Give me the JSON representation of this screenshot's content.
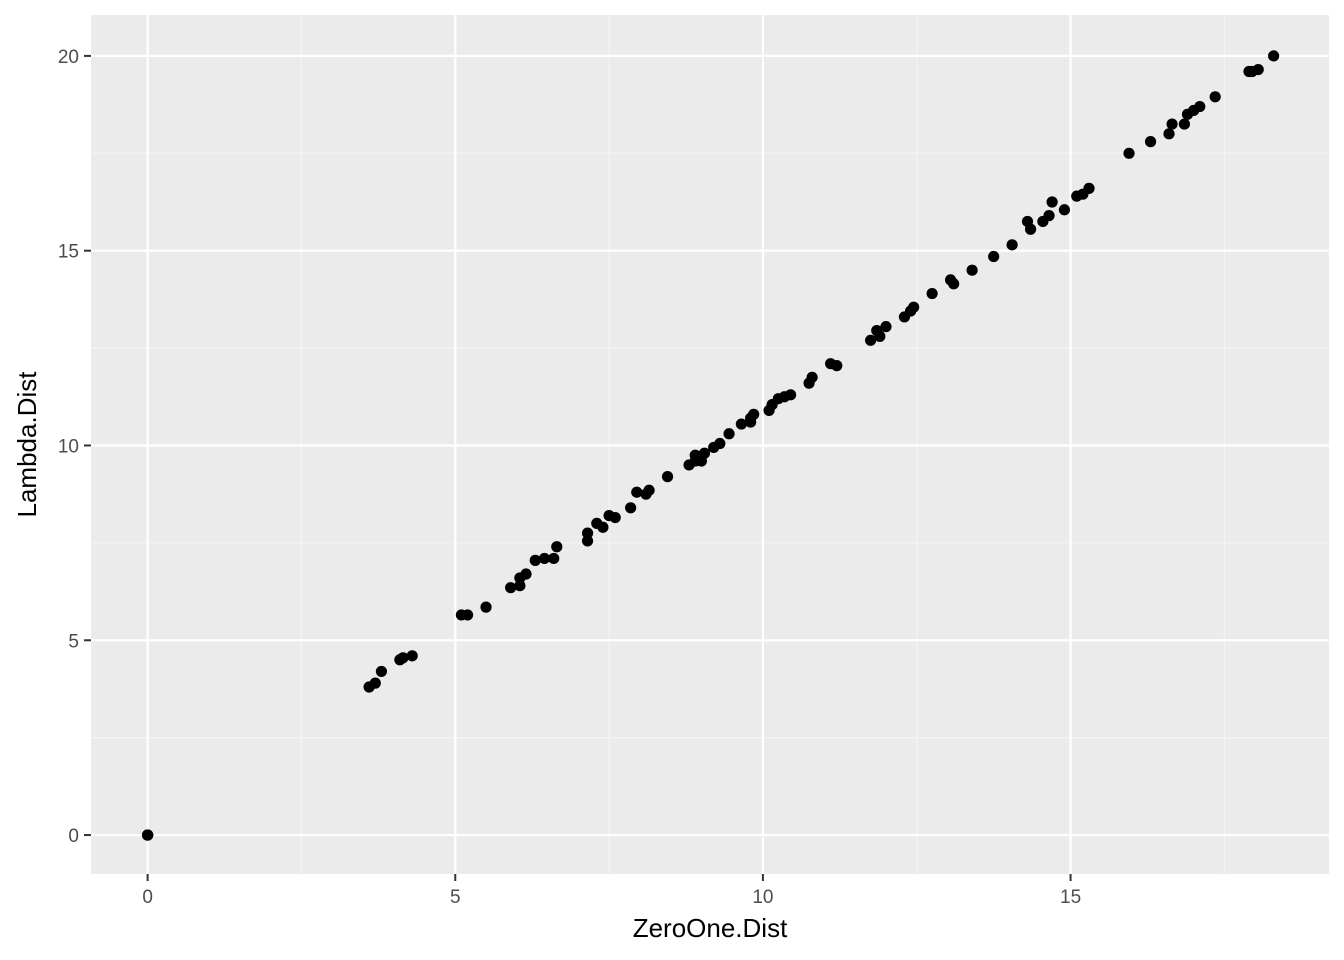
{
  "chart_data": {
    "type": "scatter",
    "title": "",
    "xlabel": "ZeroOne.Dist",
    "ylabel": "Lambda.Dist",
    "xlim": [
      -0.92,
      19.2
    ],
    "ylim": [
      -1.0,
      21.05
    ],
    "x_ticks": [
      0,
      5,
      10,
      15
    ],
    "x_tick_labels": [
      "0",
      "5",
      "10",
      "15"
    ],
    "y_ticks": [
      0,
      5,
      10,
      15,
      20
    ],
    "y_tick_labels": [
      "0",
      "5",
      "10",
      "15",
      "20"
    ],
    "grid": true,
    "legend": "none",
    "colors": {
      "panel_background": "#ebebeb",
      "grid_major": "#ffffff",
      "grid_minor": "#f5f5f5",
      "point": "#000000",
      "tick_label": "#4d4d4d",
      "tick_mark": "#333333"
    },
    "points": [
      [
        0,
        0
      ],
      [
        0,
        0
      ],
      [
        0,
        0
      ],
      [
        0,
        0
      ],
      [
        0,
        0
      ],
      [
        3.6,
        3.8
      ],
      [
        3.7,
        3.9
      ],
      [
        3.8,
        4.2
      ],
      [
        4.1,
        4.5
      ],
      [
        4.15,
        4.55
      ],
      [
        4.3,
        4.6
      ],
      [
        5.1,
        5.65
      ],
      [
        5.2,
        5.65
      ],
      [
        5.5,
        5.85
      ],
      [
        5.9,
        6.35
      ],
      [
        6.05,
        6.4
      ],
      [
        6.05,
        6.6
      ],
      [
        6.15,
        6.7
      ],
      [
        6.3,
        7.05
      ],
      [
        6.45,
        7.1
      ],
      [
        6.6,
        7.1
      ],
      [
        6.65,
        7.4
      ],
      [
        7.15,
        7.55
      ],
      [
        7.15,
        7.75
      ],
      [
        7.3,
        8.0
      ],
      [
        7.4,
        7.9
      ],
      [
        7.5,
        8.2
      ],
      [
        7.6,
        8.15
      ],
      [
        7.85,
        8.4
      ],
      [
        7.95,
        8.8
      ],
      [
        8.1,
        8.75
      ],
      [
        8.15,
        8.85
      ],
      [
        8.45,
        9.2
      ],
      [
        8.8,
        9.5
      ],
      [
        8.9,
        9.6
      ],
      [
        8.9,
        9.75
      ],
      [
        9.0,
        9.6
      ],
      [
        9.05,
        9.8
      ],
      [
        9.2,
        9.95
      ],
      [
        9.3,
        10.05
      ],
      [
        9.45,
        10.3
      ],
      [
        9.65,
        10.55
      ],
      [
        9.8,
        10.7
      ],
      [
        9.8,
        10.6
      ],
      [
        9.85,
        10.8
      ],
      [
        10.1,
        10.9
      ],
      [
        10.15,
        11.05
      ],
      [
        10.25,
        11.2
      ],
      [
        10.35,
        11.25
      ],
      [
        10.45,
        11.3
      ],
      [
        10.75,
        11.6
      ],
      [
        10.8,
        11.75
      ],
      [
        11.1,
        12.1
      ],
      [
        11.2,
        12.05
      ],
      [
        11.75,
        12.7
      ],
      [
        11.85,
        12.95
      ],
      [
        11.9,
        12.8
      ],
      [
        12.0,
        13.05
      ],
      [
        12.3,
        13.3
      ],
      [
        12.4,
        13.45
      ],
      [
        12.45,
        13.55
      ],
      [
        12.75,
        13.9
      ],
      [
        13.05,
        14.25
      ],
      [
        13.1,
        14.15
      ],
      [
        13.4,
        14.5
      ],
      [
        13.75,
        14.85
      ],
      [
        14.05,
        15.15
      ],
      [
        14.3,
        15.75
      ],
      [
        14.35,
        15.55
      ],
      [
        14.55,
        15.75
      ],
      [
        14.65,
        15.9
      ],
      [
        14.7,
        16.25
      ],
      [
        14.9,
        16.05
      ],
      [
        15.1,
        16.4
      ],
      [
        15.2,
        16.45
      ],
      [
        15.3,
        16.6
      ],
      [
        15.95,
        17.5
      ],
      [
        16.3,
        17.8
      ],
      [
        16.6,
        18.0
      ],
      [
        16.65,
        18.25
      ],
      [
        16.85,
        18.25
      ],
      [
        16.9,
        18.5
      ],
      [
        17.0,
        18.6
      ],
      [
        17.1,
        18.7
      ],
      [
        17.35,
        18.95
      ],
      [
        17.9,
        19.6
      ],
      [
        17.95,
        19.6
      ],
      [
        18.05,
        19.65
      ],
      [
        18.3,
        20.0
      ]
    ]
  }
}
